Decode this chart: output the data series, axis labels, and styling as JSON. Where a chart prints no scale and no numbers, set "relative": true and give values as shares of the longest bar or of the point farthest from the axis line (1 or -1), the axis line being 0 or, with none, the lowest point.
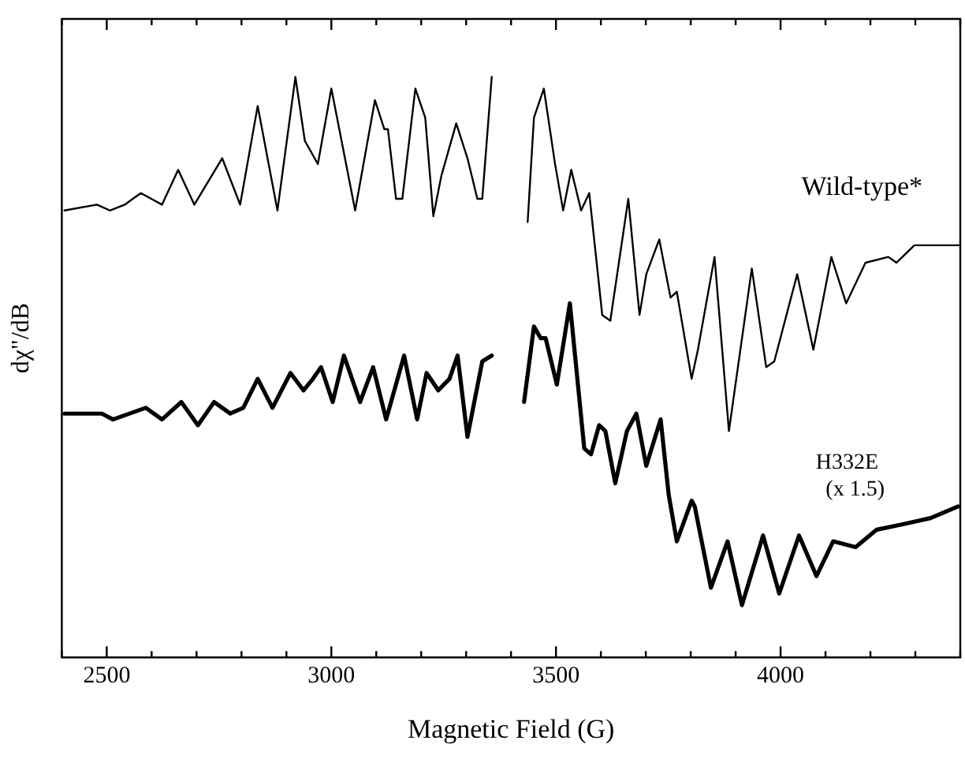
{
  "chart_data": {
    "type": "line",
    "relative": true,
    "xlabel": "Magnetic Field (G)",
    "ylabel": "dχ\"/dB",
    "xlim": [
      2400,
      4400
    ],
    "xticks": [
      {
        "value": 2400,
        "label": null
      },
      2500,
      {
        "value": 2600,
        "label": null
      },
      {
        "value": 2700,
        "label": null
      },
      {
        "value": 2800,
        "label": null
      },
      {
        "value": 2900,
        "label": null
      },
      3000,
      {
        "value": 3100,
        "label": null
      },
      {
        "value": 3200,
        "label": null
      },
      {
        "value": 3300,
        "label": null
      },
      {
        "value": 3400,
        "label": null
      },
      3500,
      {
        "value": 3600,
        "label": null
      },
      {
        "value": 3700,
        "label": null
      },
      {
        "value": 3800,
        "label": null
      },
      {
        "value": 3900,
        "label": null
      },
      4000,
      {
        "value": 4100,
        "label": null
      },
      {
        "value": 4200,
        "label": null
      },
      {
        "value": 4300,
        "label": null
      },
      {
        "value": 4400,
        "label": null
      }
    ],
    "grid": false,
    "legend": false,
    "marker": "none",
    "line_style": "solid",
    "annotations": [
      "(x 1.5)"
    ],
    "series": [
      {
        "name": "Wild-type*",
        "color": "#000000",
        "x": [
          2406,
          2478,
          2507,
          2540,
          2576,
          2623,
          2659,
          2695,
          2757,
          2797,
          2836,
          2880,
          2920,
          2941,
          2970,
          3000,
          3053,
          3097,
          3118,
          3126,
          3144,
          3158,
          3187,
          3209,
          3227,
          3245,
          3278,
          3303,
          3325,
          3336,
          3357,
          3400,
          3437,
          3451,
          3473,
          3498,
          3516,
          3534,
          3556,
          3574,
          3603,
          3621,
          3661,
          3686,
          3701,
          3730,
          3755,
          3769,
          3802,
          3816,
          3853,
          3885,
          3936,
          3968,
          3986,
          4037,
          4073,
          4113,
          4146,
          4189,
          4240,
          4258,
          4298,
          4348,
          4400
        ],
        "values": [
          0.77,
          0.78,
          0.77,
          0.78,
          0.8,
          0.78,
          0.84,
          0.78,
          0.86,
          0.78,
          0.95,
          0.77,
          1.0,
          0.89,
          0.85,
          0.98,
          0.77,
          0.96,
          0.91,
          0.91,
          0.79,
          0.79,
          0.98,
          0.93,
          0.76,
          0.83,
          0.92,
          0.86,
          0.79,
          0.79,
          1.0,
          null,
          0.75,
          0.93,
          0.98,
          0.85,
          0.77,
          0.84,
          0.77,
          0.8,
          0.59,
          0.58,
          0.79,
          0.59,
          0.66,
          0.72,
          0.62,
          0.63,
          0.48,
          0.53,
          0.69,
          0.39,
          0.67,
          0.5,
          0.51,
          0.66,
          0.53,
          0.69,
          0.61,
          0.68,
          0.69,
          0.68,
          0.71,
          0.71,
          0.71
        ]
      },
      {
        "name": "H332E",
        "color": "#000000",
        "x": [
          2406,
          2453,
          2489,
          2514,
          2587,
          2623,
          2666,
          2703,
          2739,
          2775,
          2804,
          2836,
          2869,
          2909,
          2938,
          2959,
          2977,
          3003,
          3028,
          3064,
          3093,
          3122,
          3162,
          3191,
          3212,
          3238,
          3263,
          3281,
          3303,
          3336,
          3357,
          3395,
          3429,
          3451,
          3466,
          3477,
          3502,
          3531,
          3563,
          3578,
          3596,
          3610,
          3632,
          3658,
          3679,
          3701,
          3733,
          3751,
          3769,
          3802,
          3809,
          3845,
          3882,
          3914,
          3961,
          3997,
          4041,
          4080,
          4117,
          4167,
          4214,
          4276,
          4334,
          4395
        ],
        "values": [
          0.42,
          0.42,
          0.42,
          0.41,
          0.43,
          0.41,
          0.44,
          0.4,
          0.44,
          0.42,
          0.43,
          0.48,
          0.43,
          0.49,
          0.46,
          0.48,
          0.5,
          0.44,
          0.52,
          0.44,
          0.5,
          0.41,
          0.52,
          0.41,
          0.49,
          0.46,
          0.48,
          0.52,
          0.38,
          0.51,
          0.52,
          null,
          0.44,
          0.57,
          0.55,
          0.55,
          0.47,
          0.61,
          0.36,
          0.35,
          0.4,
          0.39,
          0.3,
          0.39,
          0.42,
          0.33,
          0.41,
          0.28,
          0.2,
          0.27,
          0.26,
          0.12,
          0.2,
          0.09,
          0.21,
          0.11,
          0.21,
          0.14,
          0.2,
          0.19,
          0.22,
          0.23,
          0.24,
          0.26
        ]
      }
    ]
  }
}
